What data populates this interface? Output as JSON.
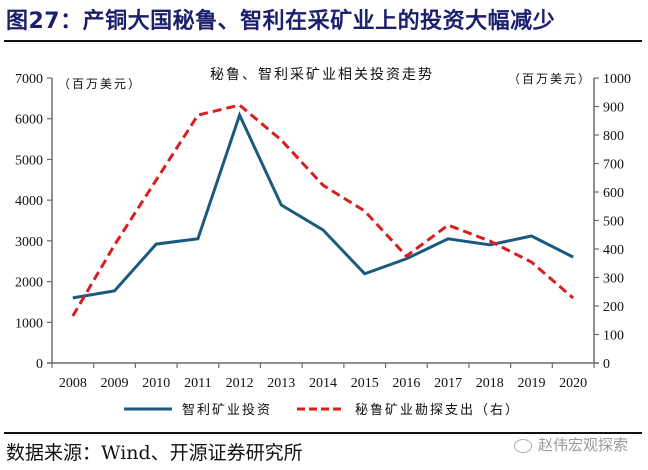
{
  "figure": {
    "title": "图27：产铜大国秘鲁、智利在采矿业上的投资大幅减少",
    "source": "数据来源：Wind、开源证券研究所",
    "watermark": "赵伟宏观探索"
  },
  "chart_data": {
    "type": "line",
    "title": "秘鲁、智利采矿业相关投资走势",
    "ylabel_left": "（百万美元）",
    "ylabel_right": "（百万美元）",
    "x": [
      "2008",
      "2009",
      "2010",
      "2011",
      "2012",
      "2013",
      "2014",
      "2015",
      "2016",
      "2017",
      "2018",
      "2019",
      "2020"
    ],
    "ylim_left": [
      0,
      7000
    ],
    "yticks_left": [
      "0",
      "1000",
      "2000",
      "3000",
      "4000",
      "5000",
      "6000",
      "7000"
    ],
    "ylim_right": [
      0,
      1000
    ],
    "yticks_right": [
      "0",
      "100",
      "200",
      "300",
      "400",
      "500",
      "600",
      "700",
      "800",
      "900",
      "1000"
    ],
    "grid": false,
    "legend_position": "bottom",
    "series": [
      {
        "name": "智利矿业投资",
        "axis": "left",
        "style": "solid",
        "color": "#1b5a7f",
        "values": [
          1600,
          1770,
          2920,
          3050,
          6090,
          3880,
          3270,
          2190,
          2560,
          3050,
          2900,
          3120,
          2600
        ]
      },
      {
        "name": "秘鲁矿业勘探支出（右）",
        "axis": "right",
        "style": "dashed",
        "color": "#d81e1e",
        "values": [
          165,
          414,
          642,
          870,
          905,
          782,
          624,
          533,
          375,
          484,
          428,
          354,
          228
        ]
      }
    ]
  }
}
